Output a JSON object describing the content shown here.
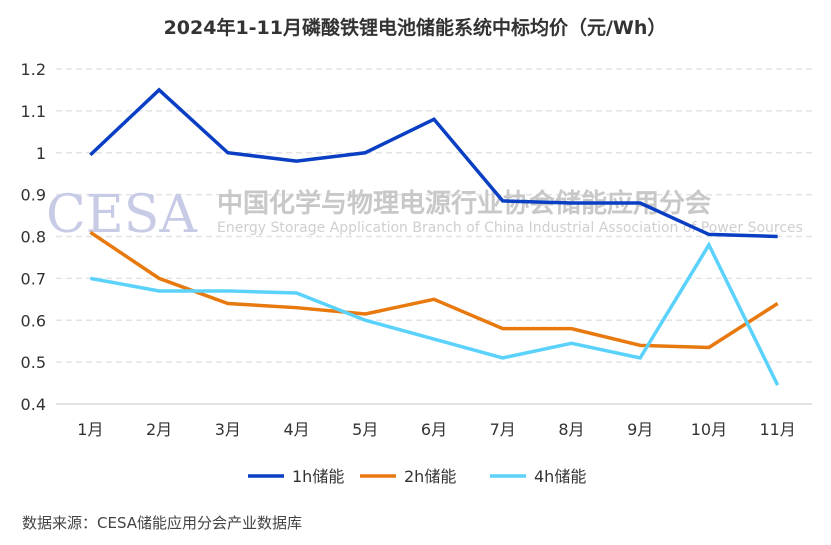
{
  "chart_data": {
    "type": "line",
    "title": "2024年1-11月磷酸铁锂电池储能系统中标均价（元/Wh）",
    "categories": [
      "1月",
      "2月",
      "3月",
      "4月",
      "5月",
      "6月",
      "7月",
      "8月",
      "9月",
      "10月",
      "11月"
    ],
    "ylim": [
      0.4,
      1.2
    ],
    "yticks": [
      "0.4",
      "0.5",
      "0.6",
      "0.7",
      "0.8",
      "0.9",
      "1",
      "1.1",
      "1.2"
    ],
    "grid": true,
    "legend_position": "bottom",
    "series": [
      {
        "name": "1h储能",
        "color": "#0a3fc4",
        "values": [
          0.995,
          1.15,
          1.0,
          0.98,
          1.0,
          1.08,
          0.885,
          0.88,
          0.88,
          0.805,
          0.8
        ]
      },
      {
        "name": "2h储能",
        "color": "#e8790f",
        "values": [
          0.81,
          0.7,
          0.64,
          0.63,
          0.615,
          0.65,
          0.58,
          0.58,
          0.54,
          0.535,
          0.64
        ]
      },
      {
        "name": "4h储能",
        "color": "#5ad2fb",
        "values": [
          0.7,
          0.67,
          0.67,
          0.665,
          0.6,
          0.555,
          0.51,
          0.545,
          0.51,
          0.78,
          0.445
        ]
      }
    ]
  },
  "watermark": {
    "logo": "CESA",
    "cn": "中国化学与物理电源行业协会储能应用分会",
    "en": "Energy Storage Application Branch of China Industrial Association of Power Sources"
  },
  "source": "数据来源：CESA储能应用分会产业数据库"
}
